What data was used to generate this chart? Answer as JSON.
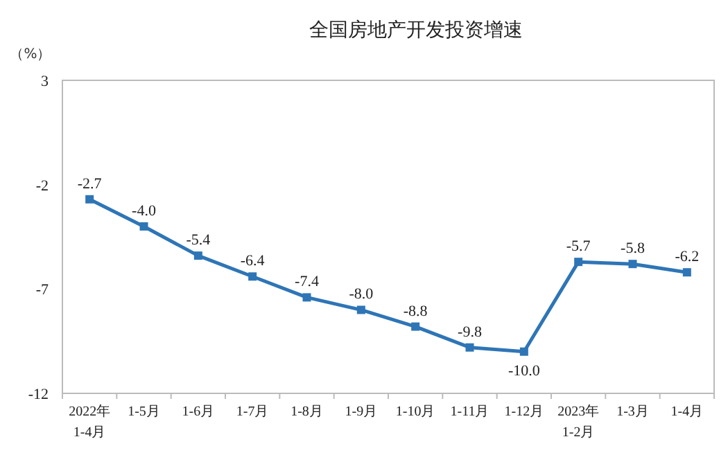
{
  "chart_data": {
    "type": "line",
    "title": "全国房地产开发投资增速",
    "ylabel": "（%）",
    "categories": [
      "2022年\n1-4月",
      "1-5月",
      "1-6月",
      "1-7月",
      "1-8月",
      "1-9月",
      "1-10月",
      "1-11月",
      "1-12月",
      "2023年\n1-2月",
      "1-3月",
      "1-4月"
    ],
    "series": [
      {
        "color": "#2e75b6",
        "values": [
          -2.7,
          -4.0,
          -5.4,
          -6.4,
          -7.4,
          -8.0,
          -8.8,
          -9.8,
          -10.0,
          -5.7,
          -5.8,
          -6.2
        ],
        "value_labels": [
          "-2.7",
          "-4.0",
          "-5.4",
          "-6.4",
          "-7.4",
          "-8.0",
          "-8.8",
          "-9.8",
          "-10.0",
          "-5.7",
          "-5.8",
          "-6.2"
        ]
      }
    ],
    "ylim": [
      -12,
      3
    ],
    "yticks": [
      3,
      -2,
      -7,
      -12
    ],
    "marker": "square",
    "grid": false
  }
}
